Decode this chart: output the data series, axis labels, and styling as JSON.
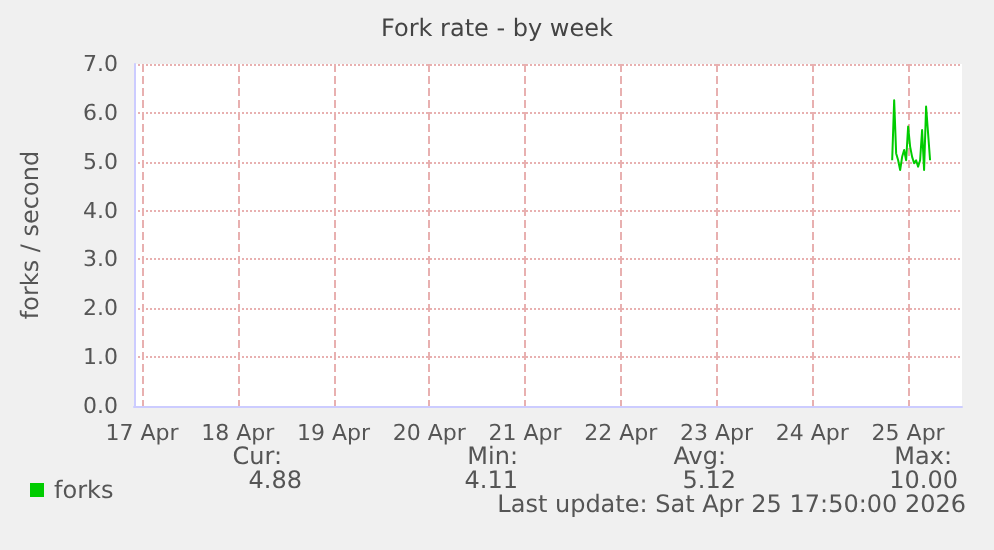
{
  "chart_data": {
    "type": "line",
    "title": "Fork rate - by week",
    "ylabel": "forks / second",
    "x": [
      "2026-04-25T08:00",
      "2026-04-25T08:30",
      "2026-04-25T09:00",
      "2026-04-25T09:30",
      "2026-04-25T10:00",
      "2026-04-25T10:30",
      "2026-04-25T11:00",
      "2026-04-25T11:30",
      "2026-04-25T12:00",
      "2026-04-25T12:30",
      "2026-04-25T13:00",
      "2026-04-25T13:30",
      "2026-04-25T14:00",
      "2026-04-25T14:30",
      "2026-04-25T15:00",
      "2026-04-25T15:30",
      "2026-04-25T16:00",
      "2026-04-25T16:30",
      "2026-04-25T17:30"
    ],
    "series": [
      {
        "name": "forks",
        "color": "#00cc00",
        "values": [
          5.03,
          6.26,
          5.17,
          5.03,
          4.83,
          5.1,
          5.24,
          5.03,
          5.72,
          5.31,
          5.1,
          4.97,
          5.03,
          4.9,
          5.03,
          5.65,
          4.83,
          6.13,
          5.03
        ]
      }
    ],
    "xlim": [
      "2026-04-17T10:00",
      "2026-04-26T01:30"
    ],
    "xticks": [
      {
        "value": "2026-04-17T12:00",
        "label": "17 Apr"
      },
      {
        "value": "2026-04-18T12:00",
        "label": "18 Apr"
      },
      {
        "value": "2026-04-19T12:00",
        "label": "19 Apr"
      },
      {
        "value": "2026-04-20T12:00",
        "label": "20 Apr"
      },
      {
        "value": "2026-04-21T12:00",
        "label": "21 Apr"
      },
      {
        "value": "2026-04-22T12:00",
        "label": "22 Apr"
      },
      {
        "value": "2026-04-23T12:00",
        "label": "23 Apr"
      },
      {
        "value": "2026-04-24T12:00",
        "label": "24 Apr"
      },
      {
        "value": "2026-04-25T12:00",
        "label": "25 Apr"
      }
    ],
    "ylim": [
      0,
      7
    ],
    "yticks": [
      {
        "value": 0,
        "label": "0.0"
      },
      {
        "value": 1,
        "label": "1.0"
      },
      {
        "value": 2,
        "label": "2.0"
      },
      {
        "value": 3,
        "label": "3.0"
      },
      {
        "value": 4,
        "label": "4.0"
      },
      {
        "value": 5,
        "label": "5.0"
      },
      {
        "value": 6,
        "label": "6.0"
      },
      {
        "value": 7,
        "label": "7.0"
      }
    ],
    "grid": true,
    "legend": "bottom left",
    "marker": "none",
    "line_style": "solid",
    "annotations": [
      "Cur:",
      "Min:",
      "Avg:",
      "Max:",
      "4.88",
      "4.11",
      "5.12",
      "10.00",
      "Last update: Sat Apr 25 17:50:00 2026"
    ]
  }
}
